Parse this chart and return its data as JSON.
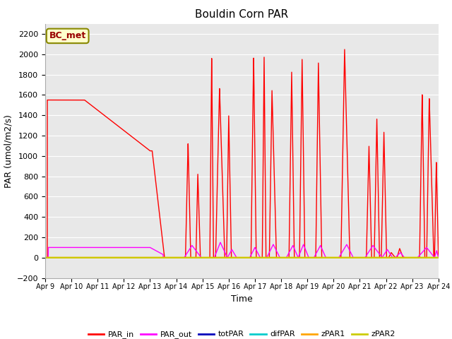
{
  "title": "Bouldin Corn PAR",
  "ylabel": "PAR (umol/m2/s)",
  "xlabel": "Time",
  "ylim": [
    -200,
    2300
  ],
  "annotation": "BC_met",
  "bg_color": "#e8e8e8",
  "legend_entries": [
    {
      "label": "PAR_in",
      "color": "#ff0000"
    },
    {
      "label": "PAR_out",
      "color": "#ff00ff"
    },
    {
      "label": "totPAR",
      "color": "#0000bb"
    },
    {
      "label": "difPAR",
      "color": "#00cccc"
    },
    {
      "label": "zPAR1",
      "color": "#ffa500"
    },
    {
      "label": "zPAR2",
      "color": "#cccc00"
    }
  ],
  "x_ticks": [
    9,
    10,
    11,
    12,
    13,
    14,
    15,
    16,
    17,
    18,
    19,
    20,
    21,
    22,
    23,
    24
  ],
  "x_tick_labels": [
    "Apr 9",
    "Apr 10",
    "Apr 11",
    "Apr 12",
    "Apr 13",
    "Apr 14",
    "Apr 15",
    "Apr 16",
    "Apr 17",
    "Apr 18",
    "Apr 19",
    "Apr 20",
    "Apr 21",
    "Apr 22",
    "Apr 23",
    "Apr 24"
  ],
  "gridcolor": "#ffffff",
  "spine_color": "#aaaaaa"
}
